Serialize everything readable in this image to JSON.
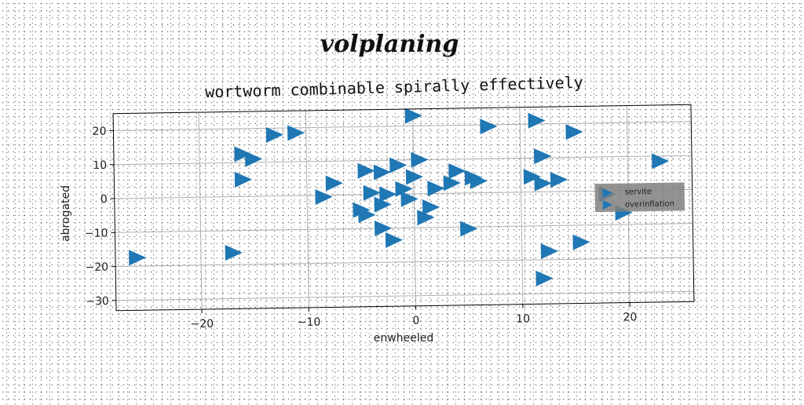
{
  "suptitle": "volplaning",
  "chart_data": {
    "type": "scatter",
    "title": "wortworm combinable spirally effectively",
    "xlabel": "enwheeled",
    "ylabel": "abrogated",
    "xlim": [
      -28,
      26
    ],
    "ylim": [
      -33,
      25
    ],
    "xticks": [
      -20,
      -10,
      0,
      10,
      20
    ],
    "yticks": [
      -30,
      -20,
      -10,
      0,
      10,
      20
    ],
    "xtick_labels": [
      "−20",
      "−10",
      "0",
      "10",
      "20"
    ],
    "ytick_labels": [
      "−30",
      "−20",
      "−10",
      "0",
      "10",
      "20"
    ],
    "grid": true,
    "legend": {
      "placement": "right",
      "entries": [
        "servite",
        "overinflation"
      ]
    },
    "colors": {
      "marker": "#1f77b4",
      "grid": "#b0b0b0",
      "legend_bg": "#808080"
    },
    "marker": "triangle-right",
    "series": [
      {
        "name": "servite",
        "x": [
          -26,
          -17,
          -15,
          -16,
          -16,
          -13,
          -11,
          -7.5,
          -8.5,
          -5,
          -3,
          -4.5,
          -4,
          -3,
          -2.5,
          -4.5,
          -3,
          -1.5,
          -2,
          0,
          -1,
          -0.5,
          0,
          0.5,
          1,
          1.5,
          2,
          3.5,
          4,
          5,
          5.5,
          6,
          7,
          11,
          11.5,
          12,
          12,
          12.5,
          12,
          13.5,
          15
        ],
        "y": [
          -17.5,
          -16.5,
          11,
          12.5,
          5,
          18,
          18.5,
          3.5,
          -0.5,
          -4.5,
          -3,
          7,
          0.5,
          6.5,
          0,
          -6,
          -10,
          8.5,
          -13.5,
          23,
          1.5,
          -1.5,
          5,
          10,
          -7,
          -4,
          1.5,
          3,
          6.5,
          -10.5,
          4.5,
          3.5,
          19.5,
          4.5,
          21,
          10.5,
          2.5,
          -17.5,
          -25.5,
          3.5,
          17.5
        ]
      },
      {
        "name": "overinflation",
        "x": [
          15.5,
          18,
          19.5,
          23
        ],
        "y": [
          -15,
          -1,
          -6.5,
          8.5
        ]
      }
    ]
  }
}
